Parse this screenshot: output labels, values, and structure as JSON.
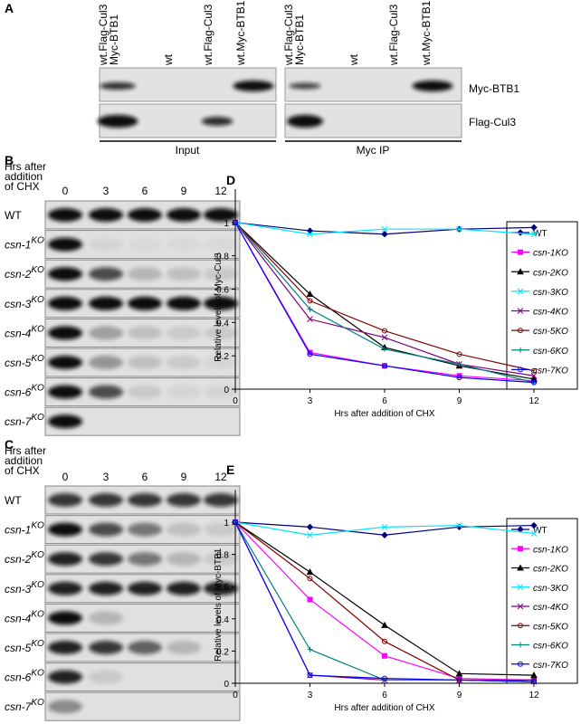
{
  "panel_labels": [
    "A",
    "B",
    "C",
    "D",
    "E"
  ],
  "panel_a": {
    "lanes": [
      [
        "wt.Flag-Cul3",
        "Myc-BTB1"
      ],
      [
        "wt"
      ],
      [
        "wt.Flag-Cul3"
      ],
      [
        "wt.Myc-BTB1"
      ]
    ],
    "row_labels": [
      "Myc-BTB1",
      "Flag-Cul3"
    ],
    "groups": [
      "Input",
      "Myc IP"
    ]
  },
  "panel_b": {
    "header": [
      "Hrs after",
      "addition",
      "of CHX"
    ],
    "times": [
      0,
      3,
      6,
      9,
      12
    ],
    "rows": [
      "WT",
      "csn-1",
      "csn-2",
      "csn-3",
      "csn-4",
      "csn-5",
      "csn-6",
      "csn-7"
    ],
    "superscript": "KO"
  },
  "panel_c": {
    "header": [
      "Hrs after",
      "addition",
      "of CHX"
    ],
    "times": [
      0,
      3,
      6,
      9,
      12
    ],
    "rows": [
      "WT",
      "csn-1",
      "csn-2",
      "csn-3",
      "csn-4",
      "csn-5",
      "csn-6",
      "csn-7"
    ],
    "superscript": "KO"
  },
  "chart_data": [
    {
      "type": "line",
      "xlabel": "Hrs after addition of CHX",
      "ylabel": "Relative levels of Myc-Cul3",
      "x": [
        0,
        3,
        6,
        9,
        12
      ],
      "xlim": [
        0,
        12
      ],
      "xticks": [
        0,
        3,
        6,
        9,
        12
      ],
      "ylim": [
        0,
        1.2
      ],
      "yticks": [
        0,
        0.2,
        0.4,
        0.6,
        0.8,
        1
      ],
      "series": [
        {
          "name": "WT",
          "color": "#000080",
          "marker": "diamond",
          "values": [
            1,
            0.95,
            0.93,
            0.96,
            0.97
          ]
        },
        {
          "name": "csn-1KO",
          "color": "#ff00ff",
          "marker": "square",
          "values": [
            1,
            0.22,
            0.14,
            0.08,
            0.05
          ]
        },
        {
          "name": "csn-2KO",
          "color": "#000000",
          "marker": "triangle",
          "values": [
            1,
            0.57,
            0.25,
            0.14,
            0.06
          ]
        },
        {
          "name": "csn-3KO",
          "color": "#00e5ff",
          "marker": "x",
          "values": [
            1,
            0.93,
            0.96,
            0.96,
            0.93
          ]
        },
        {
          "name": "csn-4KO",
          "color": "#800080",
          "marker": "x",
          "values": [
            1,
            0.42,
            0.31,
            0.15,
            0.08
          ]
        },
        {
          "name": "csn-5KO",
          "color": "#800000",
          "marker": "circle",
          "values": [
            1,
            0.53,
            0.35,
            0.21,
            0.11
          ]
        },
        {
          "name": "csn-6KO",
          "color": "#008080",
          "marker": "plus",
          "values": [
            1,
            0.48,
            0.24,
            0.15,
            0.04
          ]
        },
        {
          "name": "csn-7KO",
          "color": "#0000ff",
          "marker": "circle",
          "values": [
            1,
            0.21,
            0.14,
            0.07,
            0.04
          ]
        }
      ]
    },
    {
      "type": "line",
      "xlabel": "Hrs after addition of CHX",
      "ylabel": "Relative levels of Myc-BTB1",
      "x": [
        0,
        3,
        6,
        9,
        12
      ],
      "xlim": [
        0,
        12
      ],
      "xticks": [
        0,
        3,
        6,
        9,
        12
      ],
      "ylim": [
        0,
        1.2
      ],
      "yticks": [
        0,
        0.2,
        0.4,
        0.6,
        0.8,
        1
      ],
      "series": [
        {
          "name": "WT",
          "color": "#000080",
          "marker": "diamond",
          "values": [
            1,
            0.97,
            0.92,
            0.97,
            0.98
          ]
        },
        {
          "name": "csn-1KO",
          "color": "#ff00ff",
          "marker": "square",
          "values": [
            1,
            0.52,
            0.17,
            0.03,
            0.02
          ]
        },
        {
          "name": "csn-2KO",
          "color": "#000000",
          "marker": "triangle",
          "values": [
            1,
            0.69,
            0.36,
            0.06,
            0.05
          ]
        },
        {
          "name": "csn-3KO",
          "color": "#00e5ff",
          "marker": "x",
          "values": [
            1,
            0.92,
            0.97,
            0.98,
            0.93
          ]
        },
        {
          "name": "csn-4KO",
          "color": "#800080",
          "marker": "x",
          "values": [
            1,
            0.05,
            0.02,
            0.02,
            0.01
          ]
        },
        {
          "name": "csn-5KO",
          "color": "#800000",
          "marker": "circle",
          "values": [
            1,
            0.65,
            0.26,
            0.02,
            0.02
          ]
        },
        {
          "name": "csn-6KO",
          "color": "#008080",
          "marker": "plus",
          "values": [
            1,
            0.21,
            0.02,
            0.02,
            0.01
          ]
        },
        {
          "name": "csn-7KO",
          "color": "#0000ff",
          "marker": "circle",
          "values": [
            1,
            0.05,
            0.03,
            0.02,
            0.01
          ]
        }
      ]
    }
  ]
}
